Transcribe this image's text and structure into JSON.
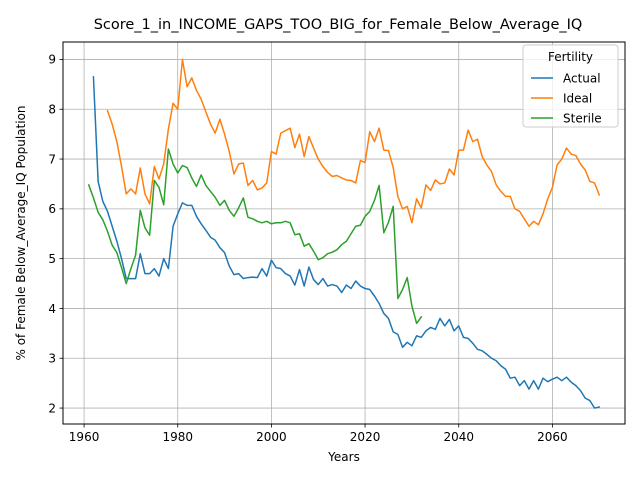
{
  "chart_data": {
    "type": "line",
    "title": "Score_1_in_INCOME_GAPS_TOO_BIG_for_Female_Below_Average_IQ",
    "xlabel": "Years",
    "ylabel": "% of Female Below_Average_IQ Population",
    "xlim": [
      1955.5,
      2075.5
    ],
    "ylim": [
      1.68,
      9.35
    ],
    "xticks": [
      1960,
      1980,
      2000,
      2020,
      2040,
      2060
    ],
    "yticks": [
      2,
      3,
      4,
      5,
      6,
      7,
      8,
      9
    ],
    "grid": true,
    "legend": {
      "title": "Fertility",
      "position": "top-right"
    },
    "series": [
      {
        "name": "Actual",
        "color": "#1f77b4",
        "x": [
          1962,
          1963,
          1964,
          1965,
          1966,
          1967,
          1968,
          1969,
          1970,
          1971,
          1972,
          1973,
          1974,
          1975,
          1976,
          1977,
          1978,
          1979,
          1980,
          1981,
          1982,
          1983,
          1984,
          1985,
          1986,
          1987,
          1988,
          1989,
          1990,
          1991,
          1992,
          1993,
          1994,
          1995,
          1996,
          1997,
          1998,
          1999,
          2000,
          2001,
          2002,
          2003,
          2004,
          2005,
          2006,
          2007,
          2008,
          2009,
          2010,
          2011,
          2012,
          2013,
          2014,
          2015,
          2016,
          2017,
          2018,
          2019,
          2020,
          2021,
          2022,
          2023,
          2024,
          2025,
          2026,
          2027,
          2028,
          2029,
          2030,
          2031,
          2032,
          2033,
          2034,
          2035,
          2036,
          2037,
          2038,
          2039,
          2040,
          2041,
          2042,
          2043,
          2044,
          2045,
          2046,
          2047,
          2048,
          2049,
          2050,
          2051,
          2052,
          2053,
          2054,
          2055,
          2056,
          2057,
          2058,
          2059,
          2060,
          2061,
          2062,
          2063,
          2064,
          2065,
          2066,
          2067,
          2068,
          2069,
          2070
        ],
        "y": [
          8.65,
          6.55,
          6.15,
          5.95,
          5.65,
          5.35,
          5.0,
          4.6,
          4.6,
          4.6,
          5.1,
          4.7,
          4.7,
          4.8,
          4.65,
          5.0,
          4.8,
          5.65,
          5.9,
          6.12,
          6.07,
          6.07,
          5.85,
          5.7,
          5.57,
          5.43,
          5.37,
          5.22,
          5.12,
          4.85,
          4.68,
          4.7,
          4.6,
          4.62,
          4.63,
          4.62,
          4.8,
          4.65,
          4.97,
          4.82,
          4.8,
          4.7,
          4.65,
          4.47,
          4.78,
          4.45,
          4.83,
          4.58,
          4.48,
          4.6,
          4.45,
          4.48,
          4.45,
          4.32,
          4.47,
          4.4,
          4.55,
          4.45,
          4.4,
          4.38,
          4.25,
          4.1,
          3.9,
          3.8,
          3.53,
          3.48,
          3.22,
          3.32,
          3.25,
          3.45,
          3.42,
          3.55,
          3.62,
          3.58,
          3.8,
          3.65,
          3.78,
          3.55,
          3.65,
          3.42,
          3.4,
          3.3,
          3.18,
          3.15,
          3.08,
          3.0,
          2.95,
          2.85,
          2.78,
          2.6,
          2.62,
          2.45,
          2.55,
          2.38,
          2.55,
          2.38,
          2.6,
          2.53,
          2.58,
          2.62,
          2.55,
          2.62,
          2.52,
          2.45,
          2.35,
          2.2,
          2.15,
          2.0,
          2.02
        ]
      },
      {
        "name": "Ideal",
        "color": "#ff7f0e",
        "x": [
          1965,
          1966,
          1967,
          1968,
          1969,
          1970,
          1971,
          1972,
          1973,
          1974,
          1975,
          1976,
          1977,
          1978,
          1979,
          1980,
          1981,
          1982,
          1983,
          1984,
          1985,
          1986,
          1987,
          1988,
          1989,
          1990,
          1991,
          1992,
          1993,
          1994,
          1995,
          1996,
          1997,
          1998,
          1999,
          2000,
          2001,
          2002,
          2003,
          2004,
          2005,
          2006,
          2007,
          2008,
          2009,
          2010,
          2011,
          2012,
          2013,
          2014,
          2015,
          2016,
          2017,
          2018,
          2019,
          2020,
          2021,
          2022,
          2023,
          2024,
          2025,
          2026,
          2027,
          2028,
          2029,
          2030,
          2031,
          2032,
          2033,
          2034,
          2035,
          2036,
          2037,
          2038,
          2039,
          2040,
          2041,
          2042,
          2043,
          2044,
          2045,
          2046,
          2047,
          2048,
          2049,
          2050,
          2051,
          2052,
          2053,
          2054,
          2055,
          2056,
          2057,
          2058,
          2059,
          2060,
          2061,
          2062,
          2063,
          2064,
          2065,
          2066,
          2067,
          2068,
          2069,
          2070
        ],
        "y": [
          7.97,
          7.7,
          7.35,
          6.85,
          6.3,
          6.4,
          6.3,
          6.82,
          6.3,
          6.1,
          6.85,
          6.6,
          6.9,
          7.6,
          8.12,
          8.0,
          9.0,
          8.45,
          8.63,
          8.38,
          8.2,
          7.95,
          7.7,
          7.52,
          7.8,
          7.5,
          7.15,
          6.7,
          6.9,
          6.92,
          6.47,
          6.57,
          6.38,
          6.42,
          6.52,
          7.15,
          7.1,
          7.52,
          7.57,
          7.62,
          7.23,
          7.5,
          7.05,
          7.45,
          7.22,
          7.0,
          6.85,
          6.73,
          6.65,
          6.67,
          6.62,
          6.58,
          6.57,
          6.52,
          6.97,
          6.93,
          7.55,
          7.35,
          7.62,
          7.18,
          7.17,
          6.83,
          6.25,
          6.0,
          6.05,
          5.72,
          6.2,
          6.02,
          6.48,
          6.37,
          6.58,
          6.5,
          6.52,
          6.8,
          6.68,
          7.18,
          7.18,
          7.58,
          7.35,
          7.4,
          7.05,
          6.88,
          6.75,
          6.48,
          6.35,
          6.25,
          6.25,
          6.0,
          5.95,
          5.8,
          5.65,
          5.75,
          5.68,
          5.9,
          6.2,
          6.43,
          6.88,
          7.0,
          7.22,
          7.1,
          7.07,
          6.9,
          6.78,
          6.55,
          6.52,
          6.28
        ]
      },
      {
        "name": "Sterile",
        "color": "#2ca02c",
        "x": [
          1961,
          1962,
          1963,
          1964,
          1965,
          1966,
          1967,
          1968,
          1969,
          1970,
          1971,
          1972,
          1973,
          1974,
          1975,
          1976,
          1977,
          1978,
          1979,
          1980,
          1981,
          1982,
          1983,
          1984,
          1985,
          1986,
          1987,
          1988,
          1989,
          1990,
          1991,
          1992,
          1993,
          1994,
          1995,
          1996,
          1997,
          1998,
          1999,
          2000,
          2001,
          2002,
          2003,
          2004,
          2005,
          2006,
          2007,
          2008,
          2009,
          2010,
          2011,
          2012,
          2013,
          2014,
          2015,
          2016,
          2017,
          2018,
          2019,
          2020,
          2021,
          2022,
          2023,
          2024,
          2025,
          2026,
          2027,
          2028,
          2029,
          2030,
          2031,
          2032
        ],
        "y": [
          6.48,
          6.22,
          5.93,
          5.78,
          5.55,
          5.27,
          5.12,
          4.82,
          4.5,
          4.8,
          5.07,
          5.97,
          5.62,
          5.47,
          6.57,
          6.43,
          6.08,
          7.2,
          6.9,
          6.72,
          6.87,
          6.83,
          6.62,
          6.45,
          6.68,
          6.47,
          6.35,
          6.23,
          6.07,
          6.17,
          5.97,
          5.85,
          6.02,
          6.22,
          5.83,
          5.8,
          5.75,
          5.72,
          5.75,
          5.7,
          5.72,
          5.72,
          5.75,
          5.72,
          5.48,
          5.5,
          5.25,
          5.3,
          5.15,
          4.98,
          5.02,
          5.1,
          5.13,
          5.18,
          5.28,
          5.35,
          5.5,
          5.65,
          5.67,
          5.85,
          5.95,
          6.17,
          6.47,
          5.52,
          5.73,
          6.05,
          4.2,
          4.38,
          4.62,
          4.05,
          3.7,
          3.83
        ]
      }
    ]
  }
}
